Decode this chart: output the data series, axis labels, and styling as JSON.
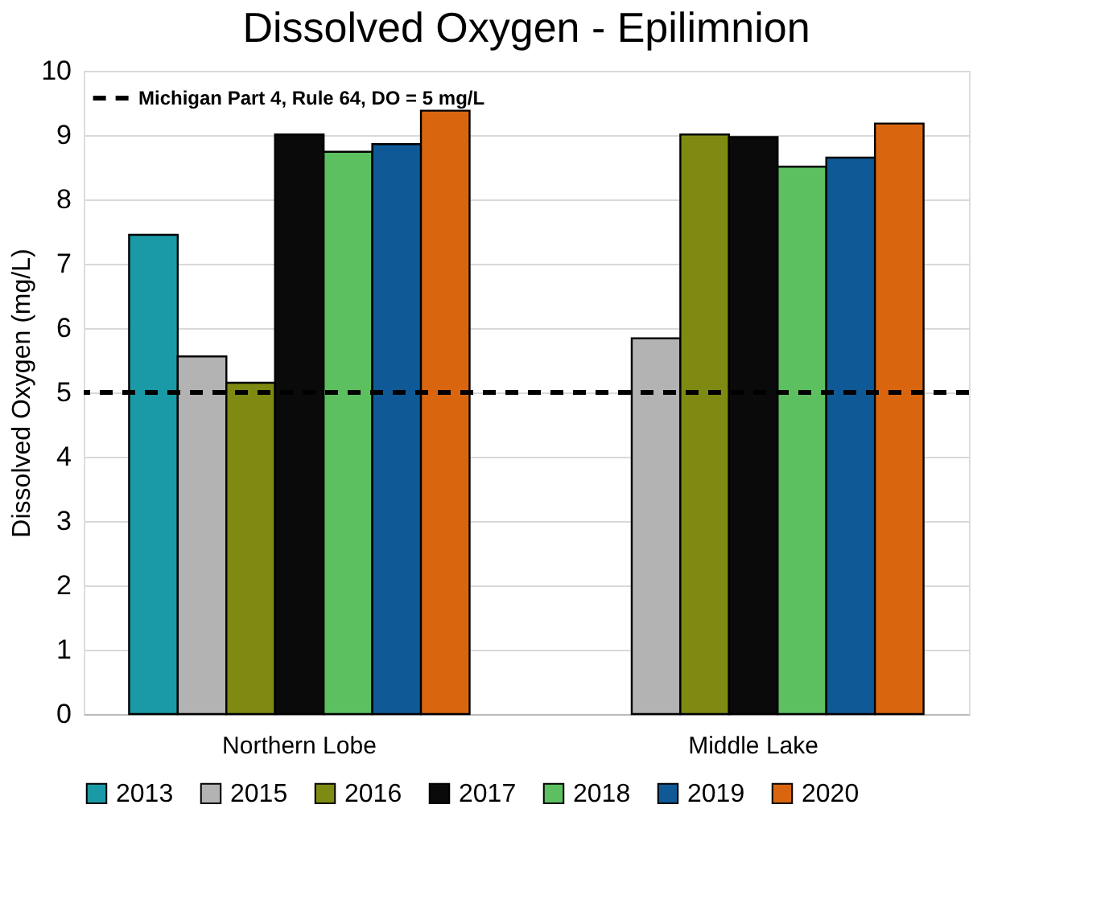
{
  "chart_data": {
    "type": "bar",
    "title": "Dissolved Oxygen - Epilimnion",
    "ylabel": "Dissolved Oxygen (mg/L)",
    "categories": [
      "Northern Lobe",
      "Middle Lake"
    ],
    "series": [
      {
        "name": "2013",
        "color": "#1a9aa6",
        "values": [
          7.45,
          null
        ]
      },
      {
        "name": "2015",
        "color": "#b3b3b3",
        "values": [
          5.56,
          5.84
        ]
      },
      {
        "name": "2016",
        "color": "#7f8a12",
        "values": [
          5.15,
          9.01
        ]
      },
      {
        "name": "2017",
        "color": "#0a0a0a",
        "values": [
          9.01,
          8.97
        ]
      },
      {
        "name": "2018",
        "color": "#5cc060",
        "values": [
          8.74,
          8.51
        ]
      },
      {
        "name": "2019",
        "color": "#0f5a96",
        "values": [
          8.86,
          8.65
        ]
      },
      {
        "name": "2020",
        "color": "#d9660f",
        "values": [
          9.38,
          9.18
        ]
      }
    ],
    "ylim": [
      0,
      10
    ],
    "yticks": [
      0,
      1,
      2,
      3,
      4,
      5,
      6,
      7,
      8,
      9,
      10
    ],
    "grid": "y",
    "legend": "bottom",
    "ref_lines": [
      {
        "axis": "y",
        "value": 5,
        "label": "Michigan Part 4, Rule 64, DO = 5 mg/L",
        "color": "#000000",
        "line_style": "dashed"
      }
    ]
  }
}
